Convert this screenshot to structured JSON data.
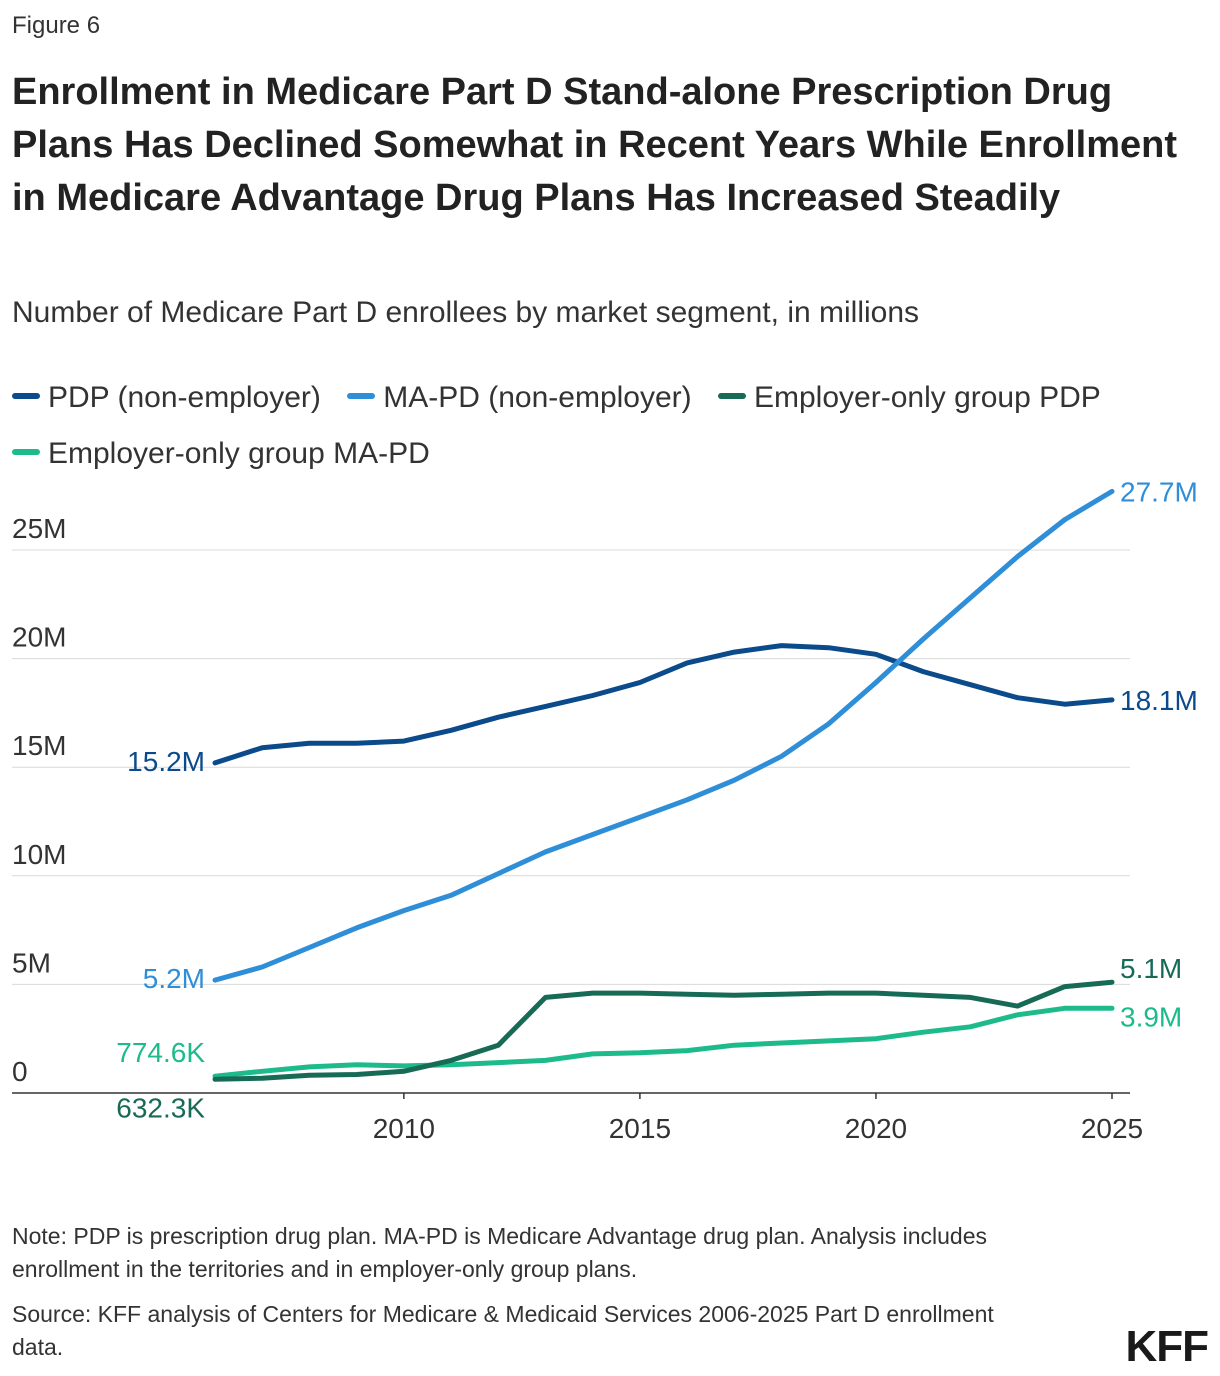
{
  "figure_label": "Figure 6",
  "colors": {
    "pdp": "#0b4a8b",
    "mapd": "#2f8ed8",
    "emp_pdp": "#176b56",
    "emp_mapd": "#1dbb8c",
    "grid": "#d9d9d9",
    "axis": "#333333"
  },
  "legend": [
    {
      "label": "PDP (non-employer)",
      "color": "#0b4a8b"
    },
    {
      "label": "MA-PD (non-employer)",
      "color": "#2f8ed8"
    },
    {
      "label": "Employer-only group PDP",
      "color": "#176b56"
    },
    {
      "label": "Employer-only group MA-PD",
      "color": "#1dbb8c"
    }
  ],
  "chart_data": {
    "type": "line",
    "title": "Enrollment in Medicare Part D Stand-alone Prescription Drug Plans Has Declined Somewhat in Recent Years While Enrollment in Medicare Advantage Drug Plans Has Increased Steadily",
    "subtitle": "Number of Medicare Part D enrollees by market segment, in millions",
    "xlabel": "",
    "ylabel": "",
    "x": [
      2006,
      2007,
      2008,
      2009,
      2010,
      2011,
      2012,
      2013,
      2014,
      2015,
      2016,
      2017,
      2018,
      2019,
      2020,
      2021,
      2022,
      2023,
      2024,
      2025
    ],
    "xlim": [
      2006,
      2025
    ],
    "ylim": [
      0,
      28
    ],
    "x_ticks": [
      {
        "value": 2010,
        "label": "2010"
      },
      {
        "value": 2015,
        "label": "2015"
      },
      {
        "value": 2020,
        "label": "2020"
      },
      {
        "value": 2025,
        "label": "2025"
      }
    ],
    "y_ticks": [
      {
        "value": 0,
        "label": "0"
      },
      {
        "value": 5,
        "label": "5M"
      },
      {
        "value": 10,
        "label": "10M"
      },
      {
        "value": 15,
        "label": "15M"
      },
      {
        "value": 20,
        "label": "20M"
      },
      {
        "value": 25,
        "label": "25M"
      }
    ],
    "grid": true,
    "series": [
      {
        "name": "PDP (non-employer)",
        "color": "#0b4a8b",
        "values": [
          15.2,
          15.9,
          16.1,
          16.1,
          16.2,
          16.7,
          17.3,
          17.8,
          18.3,
          18.9,
          19.8,
          20.3,
          20.6,
          20.5,
          20.2,
          19.4,
          18.8,
          18.2,
          17.9,
          18.1
        ],
        "start_label": "15.2M",
        "end_label": "18.1M"
      },
      {
        "name": "MA-PD (non-employer)",
        "color": "#2f8ed8",
        "values": [
          5.2,
          5.8,
          6.7,
          7.6,
          8.4,
          9.1,
          10.1,
          11.1,
          11.9,
          12.7,
          13.5,
          14.4,
          15.5,
          17.0,
          18.9,
          20.9,
          22.8,
          24.7,
          26.4,
          27.7
        ],
        "start_label": "5.2M",
        "end_label": "27.7M"
      },
      {
        "name": "Employer-only group PDP",
        "color": "#176b56",
        "values": [
          0.6323,
          0.68,
          0.82,
          0.85,
          1.0,
          1.5,
          2.2,
          4.4,
          4.6,
          4.6,
          4.55,
          4.5,
          4.55,
          4.6,
          4.6,
          4.5,
          4.4,
          4.0,
          4.9,
          5.1
        ],
        "start_label": "632.3K",
        "end_label": "5.1M"
      },
      {
        "name": "Employer-only group MA-PD",
        "color": "#1dbb8c",
        "values": [
          0.7746,
          1.0,
          1.2,
          1.3,
          1.25,
          1.3,
          1.4,
          1.5,
          1.8,
          1.85,
          1.95,
          2.2,
          2.3,
          2.4,
          2.5,
          2.8,
          3.05,
          3.6,
          3.9,
          3.9
        ],
        "start_label": "774.6K",
        "end_label": "3.9M"
      }
    ]
  },
  "note": "Note: PDP is prescription drug plan. MA-PD is Medicare Advantage drug plan. Analysis includes enrollment in the territories and in employer-only group plans.",
  "source": "Source: KFF analysis of Centers for Medicare & Medicaid Services 2006-2025 Part D enrollment data.",
  "logo": "KFF"
}
